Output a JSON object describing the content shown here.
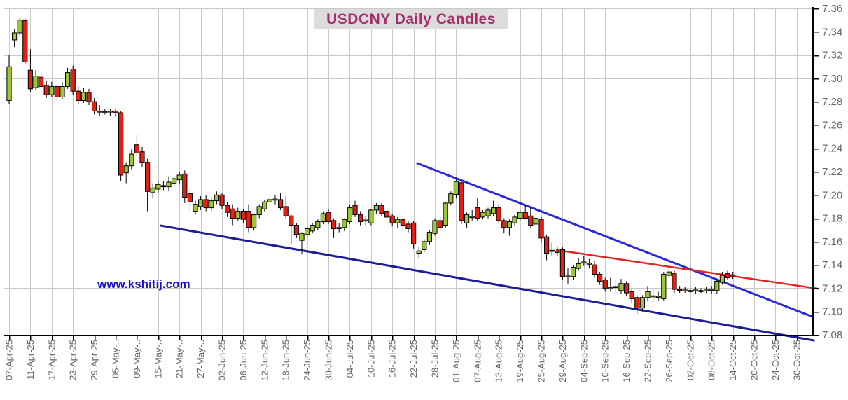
{
  "title": "USDCNY Daily Candles",
  "watermark": "www.kshitij.com",
  "chart_data": {
    "type": "candlestick",
    "title": "USDCNY Daily Candles",
    "grid": true,
    "y_axis": {
      "side": "right",
      "min": 7.08,
      "max": 7.36,
      "step": 0.02,
      "labels": [
        "7.36",
        "7.34",
        "7.32",
        "7.30",
        "7.28",
        "7.26",
        "7.24",
        "7.22",
        "7.20",
        "7.18",
        "7.16",
        "7.14",
        "7.12",
        "7.10",
        "7.08"
      ]
    },
    "x_axis": {
      "tick_every_days": 4,
      "tick_labels": [
        "07-Apr-25",
        "11-Apr-25",
        "17-Apr-25",
        "23-Apr-25",
        "29-Apr-25",
        "05-May-..",
        "09-May-..",
        "15-May-..",
        "21-May-..",
        "27-May-..",
        "02-Jun-25",
        "06-Jun-25",
        "12-Jun-25",
        "18-Jun-25",
        "24-Jun-25",
        "30-Jun-25",
        "04-Jul-25",
        "10-Jul-25",
        "16-Jul-25",
        "22-Jul-25",
        "28-Jul-25",
        "01-Aug-25",
        "07-Aug-25",
        "13-Aug-25",
        "19-Aug-25",
        "25-Aug-25",
        "29-Aug-25",
        "04-Sep-25",
        "10-Sep-25",
        "16-Sep-25",
        "22-Sep-25",
        "26-Sep-25",
        "02-Oct-25",
        "08-Oct-25",
        "14-Oct-25",
        "20-Oct-25",
        "24-Oct-25",
        "30-Oct-25"
      ]
    },
    "candles": {
      "dates": [
        "07-Apr-25",
        "08-Apr-25",
        "09-Apr-25",
        "10-Apr-25",
        "11-Apr-25",
        "14-Apr-25",
        "15-Apr-25",
        "16-Apr-25",
        "17-Apr-25",
        "18-Apr-25",
        "21-Apr-25",
        "22-Apr-25",
        "23-Apr-25",
        "24-Apr-25",
        "25-Apr-25",
        "28-Apr-25",
        "29-Apr-25",
        "30-Apr-25",
        "01-May-25",
        "02-May-25",
        "05-May-25",
        "06-May-25",
        "07-May-25",
        "08-May-25",
        "09-May-25",
        "12-May-25",
        "13-May-25",
        "14-May-25",
        "15-May-25",
        "16-May-25",
        "19-May-25",
        "20-May-25",
        "21-May-25",
        "22-May-25",
        "23-May-25",
        "26-May-25",
        "27-May-25",
        "28-May-25",
        "29-May-25",
        "30-May-25",
        "02-Jun-25",
        "03-Jun-25",
        "04-Jun-25",
        "05-Jun-25",
        "06-Jun-25",
        "09-Jun-25",
        "10-Jun-25",
        "11-Jun-25",
        "12-Jun-25",
        "13-Jun-25",
        "16-Jun-25",
        "17-Jun-25",
        "18-Jun-25",
        "19-Jun-25",
        "20-Jun-25",
        "23-Jun-25",
        "24-Jun-25",
        "25-Jun-25",
        "26-Jun-25",
        "27-Jun-25",
        "30-Jun-25",
        "01-Jul-25",
        "02-Jul-25",
        "03-Jul-25",
        "04-Jul-25",
        "07-Jul-25",
        "08-Jul-25",
        "09-Jul-25",
        "10-Jul-25",
        "11-Jul-25",
        "14-Jul-25",
        "15-Jul-25",
        "16-Jul-25",
        "17-Jul-25",
        "18-Jul-25",
        "21-Jul-25",
        "22-Jul-25",
        "23-Jul-25",
        "24-Jul-25",
        "25-Jul-25",
        "28-Jul-25",
        "29-Jul-25",
        "30-Jul-25",
        "31-Jul-25",
        "01-Aug-25",
        "04-Aug-25",
        "05-Aug-25",
        "06-Aug-25",
        "07-Aug-25",
        "08-Aug-25",
        "11-Aug-25",
        "12-Aug-25",
        "13-Aug-25",
        "14-Aug-25",
        "15-Aug-25",
        "18-Aug-25",
        "19-Aug-25",
        "20-Aug-25",
        "21-Aug-25",
        "22-Aug-25",
        "25-Aug-25",
        "26-Aug-25",
        "27-Aug-25",
        "28-Aug-25",
        "29-Aug-25",
        "01-Sep-25",
        "02-Sep-25",
        "03-Sep-25",
        "04-Sep-25",
        "05-Sep-25",
        "08-Sep-25",
        "09-Sep-25",
        "10-Sep-25",
        "11-Sep-25",
        "12-Sep-25",
        "15-Sep-25",
        "16-Sep-25",
        "17-Sep-25",
        "18-Sep-25",
        "19-Sep-25",
        "22-Sep-25",
        "23-Sep-25",
        "24-Sep-25",
        "25-Sep-25",
        "26-Sep-25",
        "29-Sep-25",
        "30-Sep-25",
        "01-Oct-25",
        "02-Oct-25",
        "03-Oct-25",
        "06-Oct-25",
        "07-Oct-25",
        "08-Oct-25",
        "09-Oct-25",
        "10-Oct-25",
        "13-Oct-25",
        "14-Oct-25"
      ],
      "open": [
        7.281,
        7.333,
        7.339,
        7.3495,
        7.307,
        7.292,
        7.301,
        7.294,
        7.286,
        7.293,
        7.284,
        7.293,
        7.308,
        7.289,
        7.281,
        7.288,
        7.28,
        7.272,
        7.271,
        7.2715,
        7.272,
        7.2705,
        7.219,
        7.225,
        7.243,
        7.237,
        7.228,
        7.202,
        7.205,
        7.208,
        7.207,
        7.21,
        7.213,
        7.218,
        7.201,
        7.186,
        7.19,
        7.196,
        7.189,
        7.195,
        7.2,
        7.191,
        7.188,
        7.18,
        7.186,
        7.186,
        7.172,
        7.183,
        7.188,
        7.194,
        7.196,
        7.196,
        7.19,
        7.182,
        7.174,
        7.161,
        7.166,
        7.169,
        7.172,
        7.177,
        7.185,
        7.178,
        7.172,
        7.172,
        7.177,
        7.191,
        7.183,
        7.178,
        7.176,
        7.187,
        7.191,
        7.186,
        7.182,
        7.176,
        7.179,
        7.175,
        7.176,
        7.15,
        7.153,
        7.16,
        7.167,
        7.178,
        7.174,
        7.193,
        7.2005,
        7.2105,
        7.176,
        7.181,
        7.189,
        7.181,
        7.182,
        7.184,
        7.189,
        7.178,
        7.172,
        7.176,
        7.18,
        7.185,
        7.182,
        7.175,
        7.179,
        7.164,
        7.152,
        7.151,
        7.153,
        7.13,
        7.13,
        7.137,
        7.142,
        7.141,
        7.14,
        7.132,
        7.127,
        7.12,
        7.121,
        7.118,
        7.124,
        7.117,
        7.112,
        7.103,
        7.112,
        7.113,
        7.1125,
        7.111,
        7.131,
        7.133,
        7.119,
        7.118,
        7.118,
        7.118,
        7.118,
        7.118,
        7.118,
        7.118,
        7.125,
        7.1325,
        7.131
      ],
      "high": [
        7.32,
        7.342,
        7.352,
        7.3515,
        7.325,
        7.307,
        7.305,
        7.298,
        7.297,
        7.295,
        7.297,
        7.309,
        7.311,
        7.293,
        7.292,
        7.291,
        7.283,
        7.277,
        7.274,
        7.274,
        7.2735,
        7.272,
        7.228,
        7.239,
        7.252,
        7.241,
        7.231,
        7.21,
        7.2115,
        7.212,
        7.216,
        7.217,
        7.22,
        7.221,
        7.205,
        7.195,
        7.199,
        7.2,
        7.198,
        7.203,
        7.202,
        7.194,
        7.192,
        7.189,
        7.188,
        7.192,
        7.184,
        7.192,
        7.196,
        7.199,
        7.2,
        7.202,
        7.199,
        7.184,
        7.176,
        7.168,
        7.173,
        7.176,
        7.179,
        7.186,
        7.188,
        7.18,
        7.176,
        7.18,
        7.192,
        7.195,
        7.186,
        7.182,
        7.188,
        7.193,
        7.193,
        7.189,
        7.184,
        7.181,
        7.181,
        7.178,
        7.178,
        7.156,
        7.162,
        7.17,
        7.18,
        7.181,
        7.194,
        7.203,
        7.2135,
        7.2125,
        7.185,
        7.187,
        7.197,
        7.187,
        7.189,
        7.195,
        7.192,
        7.18,
        7.179,
        7.183,
        7.187,
        7.191,
        7.189,
        7.19,
        7.181,
        7.166,
        7.159,
        7.156,
        7.155,
        7.137,
        7.14,
        7.146,
        7.148,
        7.145,
        7.143,
        7.134,
        7.129,
        7.129,
        7.127,
        7.128,
        7.126,
        7.119,
        7.114,
        7.114,
        7.122,
        7.119,
        7.117,
        7.134,
        7.139,
        7.135,
        7.122,
        7.121,
        7.12,
        7.121,
        7.12,
        7.121,
        7.122,
        7.128,
        7.134,
        7.135,
        7.134
      ],
      "low": [
        7.278,
        7.327,
        7.337,
        7.312,
        7.288,
        7.29,
        7.29,
        7.283,
        7.284,
        7.281,
        7.282,
        7.291,
        7.286,
        7.278,
        7.279,
        7.277,
        7.269,
        7.268,
        7.269,
        7.268,
        7.267,
        7.212,
        7.21,
        7.222,
        7.233,
        7.224,
        7.186,
        7.197,
        7.202,
        7.204,
        7.203,
        7.207,
        7.209,
        7.193,
        7.185,
        7.183,
        7.187,
        7.186,
        7.186,
        7.192,
        7.188,
        7.181,
        7.174,
        7.178,
        7.176,
        7.168,
        7.17,
        7.18,
        7.186,
        7.191,
        7.192,
        7.187,
        7.18,
        7.158,
        7.163,
        7.149,
        7.163,
        7.167,
        7.17,
        7.175,
        7.175,
        7.163,
        7.168,
        7.169,
        7.175,
        7.181,
        7.174,
        7.174,
        7.174,
        7.184,
        7.182,
        7.179,
        7.173,
        7.172,
        7.171,
        7.168,
        7.154,
        7.146,
        7.151,
        7.157,
        7.165,
        7.17,
        7.172,
        7.191,
        7.197,
        7.175,
        7.172,
        7.178,
        7.178,
        7.179,
        7.18,
        7.182,
        7.176,
        7.167,
        7.165,
        7.174,
        7.178,
        7.179,
        7.172,
        7.173,
        7.16,
        7.144,
        7.148,
        7.147,
        7.127,
        7.124,
        7.127,
        7.135,
        7.139,
        7.137,
        7.129,
        7.123,
        7.117,
        7.117,
        7.115,
        7.115,
        7.113,
        7.107,
        7.098,
        7.1,
        7.109,
        7.107,
        7.109,
        7.109,
        7.129,
        7.116,
        7.116,
        7.116,
        7.116,
        7.1155,
        7.116,
        7.116,
        7.115,
        7.115,
        7.123,
        7.127,
        7.128
      ],
      "close": [
        7.31,
        7.339,
        7.35,
        7.314,
        7.291,
        7.302,
        7.293,
        7.286,
        7.293,
        7.284,
        7.293,
        7.305,
        7.289,
        7.281,
        7.288,
        7.28,
        7.272,
        7.271,
        7.2715,
        7.272,
        7.2705,
        7.217,
        7.225,
        7.235,
        7.236,
        7.228,
        7.203,
        7.206,
        7.209,
        7.2075,
        7.211,
        7.214,
        7.217,
        7.198,
        7.194,
        7.192,
        7.196,
        7.189,
        7.195,
        7.2,
        7.191,
        7.185,
        7.18,
        7.186,
        7.179,
        7.172,
        7.183,
        7.19,
        7.194,
        7.196,
        7.1965,
        7.189,
        7.182,
        7.174,
        7.166,
        7.167,
        7.171,
        7.174,
        7.177,
        7.184,
        7.177,
        7.171,
        7.1715,
        7.179,
        7.189,
        7.183,
        7.177,
        7.1785,
        7.187,
        7.191,
        7.184,
        7.181,
        7.176,
        7.179,
        7.174,
        7.171,
        7.158,
        7.152,
        7.16,
        7.168,
        7.178,
        7.172,
        7.193,
        7.201,
        7.2115,
        7.178,
        7.183,
        7.1815,
        7.18,
        7.185,
        7.187,
        7.189,
        7.178,
        7.172,
        7.177,
        7.181,
        7.185,
        7.18,
        7.174,
        7.18,
        7.163,
        7.15,
        7.1525,
        7.1515,
        7.13,
        7.1305,
        7.138,
        7.141,
        7.1425,
        7.1415,
        7.132,
        7.126,
        7.12,
        7.1205,
        7.1215,
        7.124,
        7.116,
        7.111,
        7.103,
        7.112,
        7.117,
        7.1135,
        7.113,
        7.132,
        7.134,
        7.119,
        7.1185,
        7.1185,
        7.118,
        7.1185,
        7.118,
        7.1185,
        7.119,
        7.126,
        7.131,
        7.129,
        7.1315
      ]
    },
    "trendlines": [
      {
        "name": "support-trendline",
        "color": "#1c1c96",
        "width": 3,
        "from": {
          "day": 28.5,
          "price": 7.1737
        },
        "to": {
          "day": 151.2,
          "price": 7.0752
        }
      },
      {
        "name": "resistance-trendline",
        "color": "#2a2ad8",
        "width": 3,
        "from": {
          "day": 76.7,
          "price": 7.2272
        },
        "to": {
          "day": 150.9,
          "price": 7.0957
        }
      },
      {
        "name": "minor-resistance-line",
        "color": "#e02525",
        "width": 2.5,
        "from": {
          "day": 102.9,
          "price": 7.1527
        },
        "to": {
          "day": 152.0,
          "price": 7.1196
        }
      }
    ],
    "colors": {
      "up": "#9cc734",
      "down": "#e32013",
      "candle_border": "#000000",
      "grid": "#c9c9c9",
      "axis": "#000000",
      "label": "#666666",
      "title_text": "#a82c6a",
      "title_bg": "#dcdcdc",
      "watermark": "#1b12cf"
    }
  }
}
